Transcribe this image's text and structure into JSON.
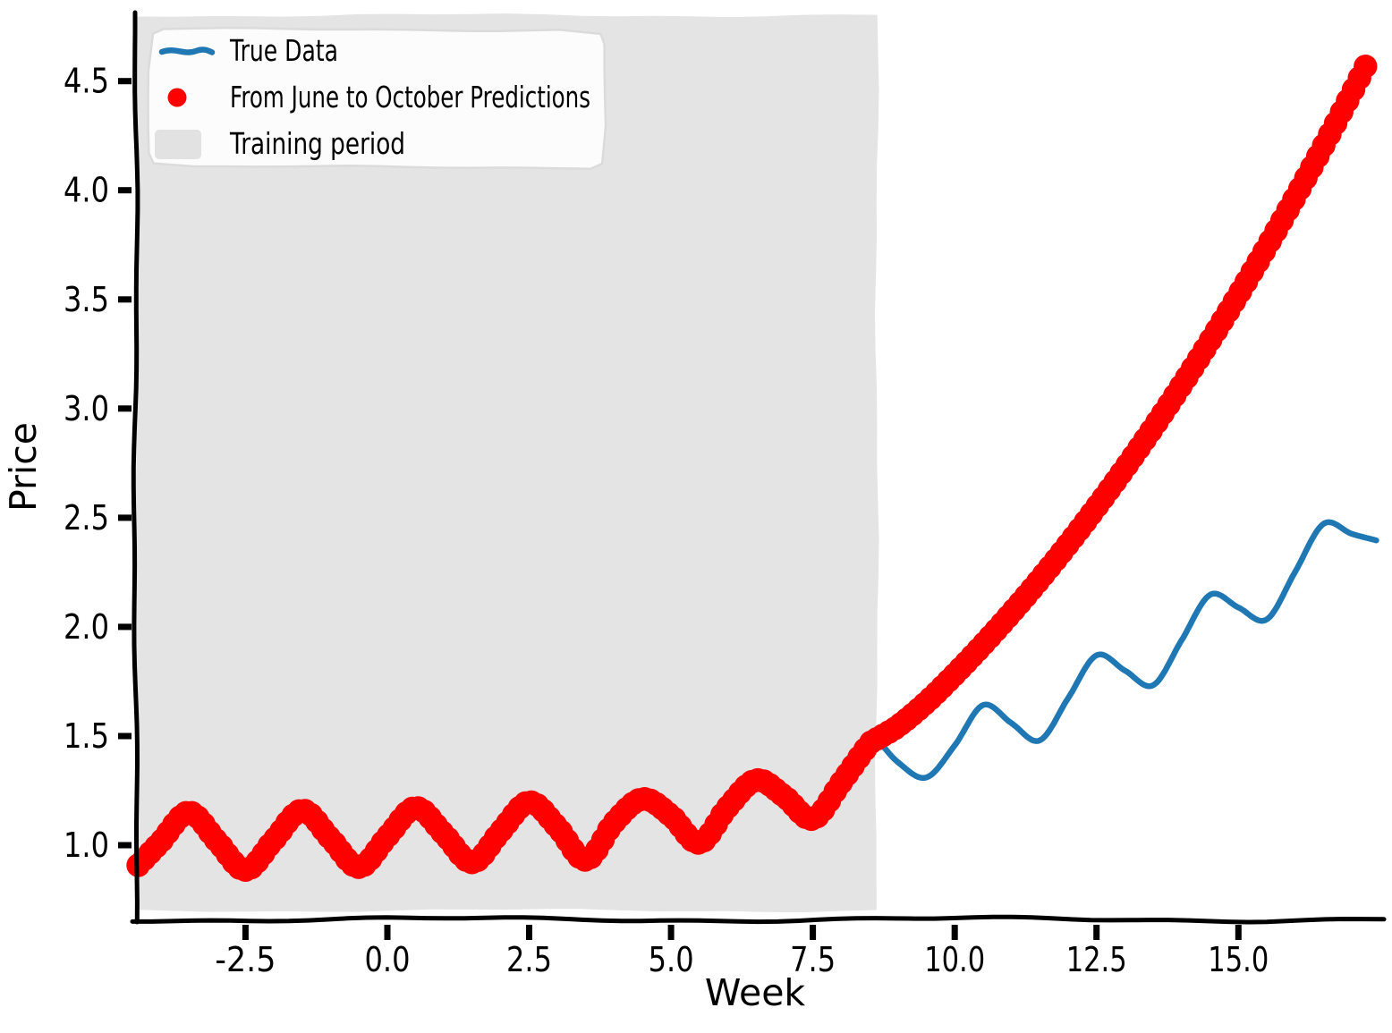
{
  "chart_data": {
    "type": "line+scatter",
    "style": "xkcd-sketch",
    "title": "",
    "xlabel": "Week",
    "ylabel": "Price",
    "xlim": [
      -4.43,
      17.55
    ],
    "ylim": [
      0.66,
      4.81
    ],
    "grid": false,
    "background_color": "#ffffff",
    "axis_color": "#000000",
    "x_ticks": {
      "values": [
        -2.5,
        0.0,
        2.5,
        5.0,
        7.5,
        10.0,
        12.5,
        15.0
      ],
      "labels": [
        "-2.5",
        "0.0",
        "2.5",
        "5.0",
        "7.5",
        "10.0",
        "12.5",
        "15.0"
      ]
    },
    "y_ticks": {
      "values": [
        1.0,
        1.5,
        2.0,
        2.5,
        3.0,
        3.5,
        4.0,
        4.5
      ],
      "labels": [
        "1.0",
        "1.5",
        "2.0",
        "2.5",
        "3.0",
        "3.5",
        "4.0",
        "4.5"
      ]
    },
    "training_region": {
      "label": "Training period",
      "x_start": -4.43,
      "x_end": 8.63,
      "color": "#e4e4e4",
      "swatch_color": "#e2e2e2"
    },
    "series": [
      {
        "name": "True Data",
        "type": "line",
        "color": "#1f77b4",
        "line_width": 6.5,
        "x": [
          8.63,
          9.0,
          9.5,
          10.0,
          10.5,
          11.0,
          11.5,
          12.0,
          12.5,
          13.0,
          13.5,
          14.0,
          14.5,
          15.0,
          15.5,
          16.0,
          16.5,
          17.0,
          17.45
        ],
        "y": [
          1.487,
          1.38,
          1.31,
          1.457,
          1.642,
          1.559,
          1.48,
          1.674,
          1.87,
          1.8,
          1.733,
          1.939,
          2.147,
          2.089,
          2.034,
          2.252,
          2.472,
          2.426,
          2.395
        ]
      },
      {
        "name": "From June to October Predictions",
        "type": "scatter",
        "color": "#ff0000",
        "marker_radius": 13.2,
        "dot_step_weeks": 0.105,
        "x": [
          -4.5,
          -4.0,
          -3.5,
          -3.0,
          -2.5,
          -2.0,
          -1.5,
          -1.0,
          -0.5,
          0.0,
          0.5,
          1.0,
          1.5,
          2.0,
          2.5,
          3.0,
          3.5,
          4.0,
          4.5,
          5.0,
          5.5,
          6.0,
          6.5,
          7.0,
          7.5,
          8.0,
          8.5,
          8.63,
          9.0,
          9.5,
          10.0,
          10.5,
          11.0,
          11.5,
          12.0,
          12.5,
          13.0,
          13.5,
          14.0,
          14.5,
          15.0,
          15.5,
          16.0,
          16.5,
          17.0,
          17.35
        ],
        "y": [
          0.878,
          1.014,
          1.151,
          1.018,
          0.886,
          1.024,
          1.16,
          1.03,
          0.899,
          1.039,
          1.172,
          1.05,
          0.921,
          1.064,
          1.198,
          1.082,
          0.932,
          1.105,
          1.212,
          1.135,
          1.01,
          1.174,
          1.298,
          1.223,
          1.12,
          1.287,
          1.465,
          1.487,
          1.545,
          1.654,
          1.782,
          1.919,
          2.064,
          2.217,
          2.379,
          2.549,
          2.727,
          2.913,
          3.107,
          3.31,
          3.521,
          3.74,
          3.968,
          4.203,
          4.447,
          4.623
        ]
      }
    ],
    "legend": {
      "position": "upper left",
      "entries": [
        "True Data",
        "From June to October Predictions",
        "Training period"
      ]
    }
  }
}
